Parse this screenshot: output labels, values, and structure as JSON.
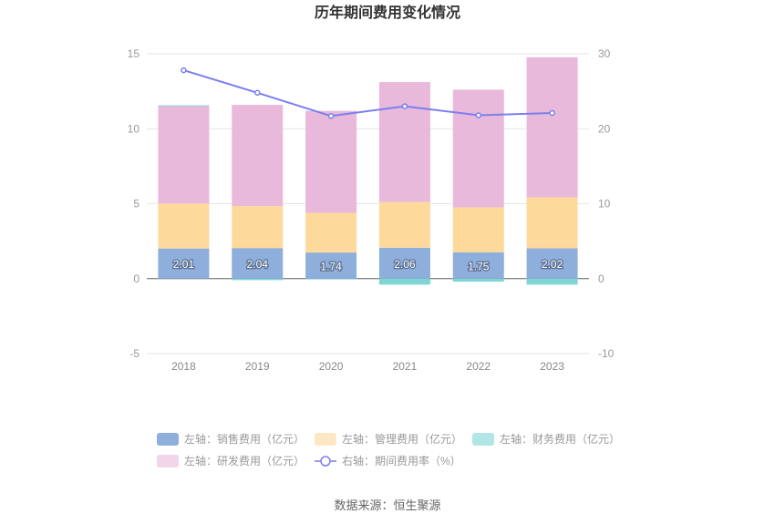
{
  "title": "历年期间费用变化情况",
  "source": "数据来源：恒生聚源",
  "colors": {
    "sales": "#8eaedc",
    "admin": "#fdd99c",
    "finance": "#7fd4d4",
    "rd": "#e8b9da",
    "rate": "#7b7ff0"
  },
  "chart_data": {
    "type": "bar",
    "categories": [
      "2018",
      "2019",
      "2020",
      "2021",
      "2022",
      "2023"
    ],
    "left_axis": {
      "ylim": [
        -5,
        15
      ],
      "ticks": [
        "15",
        "10",
        "5",
        "0",
        "-5"
      ]
    },
    "right_axis": {
      "ylim": [
        -10,
        30
      ],
      "ticks": [
        "30",
        "20",
        "10",
        "0",
        "-10"
      ]
    },
    "series": [
      {
        "key": "sales",
        "name": "左轴：销售费用（亿元）",
        "values": [
          2.01,
          2.04,
          1.74,
          2.06,
          1.75,
          2.02
        ],
        "labels": [
          "2.01",
          "2.04",
          "1.74",
          "2.06",
          "1.75",
          "2.02"
        ]
      },
      {
        "key": "admin",
        "name": "左轴：管理费用（亿元）",
        "values": [
          3.0,
          2.8,
          2.65,
          3.05,
          3.0,
          3.4
        ]
      },
      {
        "key": "finance",
        "name": "左轴：财务费用（亿元）",
        "values": [
          0.05,
          -0.1,
          -0.05,
          -0.4,
          -0.2,
          -0.4
        ]
      },
      {
        "key": "rd",
        "name": "左轴：研发费用（亿元）",
        "values": [
          6.5,
          6.75,
          6.8,
          8.0,
          7.85,
          9.35
        ]
      },
      {
        "key": "rate",
        "name": "右轴：期间费用率（%）",
        "values": [
          27.8,
          24.8,
          21.7,
          23.0,
          21.8,
          22.1
        ]
      }
    ]
  }
}
